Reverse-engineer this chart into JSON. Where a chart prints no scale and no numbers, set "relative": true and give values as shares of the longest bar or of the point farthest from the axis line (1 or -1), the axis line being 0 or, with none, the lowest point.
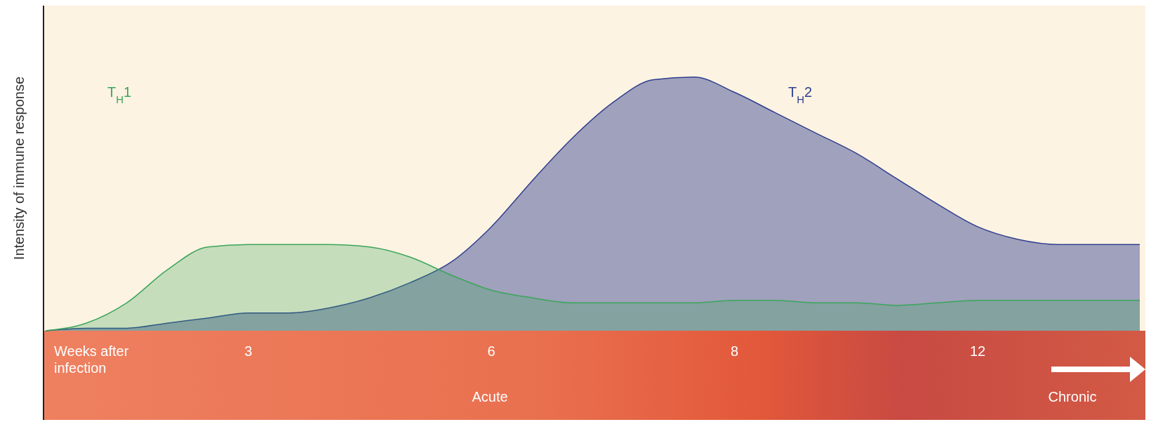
{
  "chart_data": {
    "type": "area",
    "relative": true,
    "ylabel": "Intensity of immune response",
    "xlabel": "Weeks after infection",
    "categories": [
      null,
      null,
      null,
      null,
      null,
      "3",
      null,
      null,
      null,
      null,
      null,
      "6",
      null,
      null,
      null,
      null,
      null,
      "8",
      null,
      null,
      null,
      null,
      null,
      "12",
      null,
      null,
      null,
      null
    ],
    "series": [
      {
        "name": "T$_{H}$2",
        "color": "#2f3f8f",
        "values": [
          0,
          0.01,
          0.01,
          0.03,
          0.05,
          0.07,
          0.07,
          0.09,
          0.13,
          0.19,
          0.27,
          0.41,
          0.59,
          0.76,
          0.9,
          0.99,
          1,
          0.94,
          0.86,
          0.78,
          0.7,
          0.6,
          0.5,
          0.41,
          0.36,
          0.34,
          0.34,
          0.34
        ]
      },
      {
        "name": "T$_{H}$1",
        "color": "#3aa65a",
        "values": [
          0,
          0.03,
          0.11,
          0.24,
          0.33,
          0.34,
          0.34,
          0.34,
          0.33,
          0.29,
          0.22,
          0.16,
          0.13,
          0.11,
          0.11,
          0.11,
          0.11,
          0.12,
          0.12,
          0.11,
          0.11,
          0.1,
          0.11,
          0.12,
          0.12,
          0.12,
          0.12,
          0.12
        ]
      }
    ],
    "annotations": [
      "Acute",
      "Chronic"
    ],
    "legend": false
  }
}
